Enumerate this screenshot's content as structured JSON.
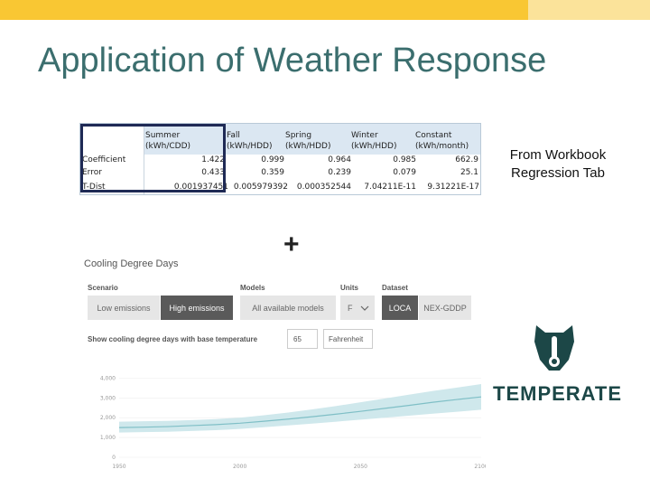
{
  "slide": {
    "title": "Application of Weather Response"
  },
  "regression_table": {
    "headers": [
      {
        "name": "Summer",
        "unit": "(kWh/CDD)"
      },
      {
        "name": "Fall",
        "unit": "(kWh/HDD)"
      },
      {
        "name": "Spring",
        "unit": "(kWh/HDD)"
      },
      {
        "name": "Winter",
        "unit": "(kWh/HDD)"
      },
      {
        "name": "Constant",
        "unit": "(kWh/month)"
      }
    ],
    "rows": [
      {
        "label": "Coefficient",
        "values": [
          "1.422",
          "0.999",
          "0.964",
          "0.985",
          "662.9"
        ]
      },
      {
        "label": "Error",
        "values": [
          "0.433",
          "0.359",
          "0.239",
          "0.079",
          "25.1"
        ]
      },
      {
        "label": "T-Dist",
        "values": [
          "0.001937451",
          "0.005979392",
          "0.000352544",
          "7.04211E-11",
          "9.31221E-17"
        ]
      }
    ]
  },
  "plus_sign": "+",
  "side_note": {
    "line1": "From Workbook",
    "line2": "Regression Tab"
  },
  "tool": {
    "title": "Cooling Degree Days",
    "scenario": {
      "label": "Scenario",
      "options": [
        "Low emissions",
        "High emissions"
      ],
      "selected": "High emissions"
    },
    "models": {
      "label": "Models",
      "value": "All available models"
    },
    "units": {
      "label": "Units",
      "value": "F"
    },
    "dataset": {
      "label": "Dataset",
      "options": [
        "LOCA",
        "NEX-GDDP"
      ],
      "selected": "LOCA"
    },
    "base_temp": {
      "label": "Show cooling degree days with base temperature",
      "value": "65",
      "unit": "Fahrenheit"
    }
  },
  "chart_data": {
    "type": "area",
    "x_ticks": [
      "1950",
      "2000",
      "2050",
      "2100"
    ],
    "y_ticks": [
      "0",
      "1,000",
      "2,000",
      "3,000",
      "4,000"
    ],
    "x_range": [
      1950,
      2100
    ],
    "y_range": [
      0,
      4200
    ],
    "median": [
      [
        1950,
        1500
      ],
      [
        1960,
        1520
      ],
      [
        1970,
        1550
      ],
      [
        1980,
        1600
      ],
      [
        1990,
        1650
      ],
      [
        2000,
        1720
      ],
      [
        2010,
        1820
      ],
      [
        2020,
        1930
      ],
      [
        2030,
        2050
      ],
      [
        2040,
        2180
      ],
      [
        2050,
        2320
      ],
      [
        2060,
        2470
      ],
      [
        2070,
        2620
      ],
      [
        2080,
        2780
      ],
      [
        2090,
        2920
      ],
      [
        2100,
        3050
      ]
    ],
    "band_low": [
      [
        1950,
        1250
      ],
      [
        1960,
        1270
      ],
      [
        1970,
        1290
      ],
      [
        1980,
        1330
      ],
      [
        1990,
        1370
      ],
      [
        2000,
        1430
      ],
      [
        2010,
        1520
      ],
      [
        2020,
        1610
      ],
      [
        2030,
        1700
      ],
      [
        2040,
        1800
      ],
      [
        2050,
        1900
      ],
      [
        2060,
        2000
      ],
      [
        2070,
        2100
      ],
      [
        2080,
        2200
      ],
      [
        2090,
        2300
      ],
      [
        2100,
        2400
      ]
    ],
    "band_high": [
      [
        1950,
        1800
      ],
      [
        1960,
        1820
      ],
      [
        1970,
        1840
      ],
      [
        1980,
        1880
      ],
      [
        1990,
        1930
      ],
      [
        2000,
        2000
      ],
      [
        2010,
        2120
      ],
      [
        2020,
        2260
      ],
      [
        2030,
        2420
      ],
      [
        2040,
        2590
      ],
      [
        2050,
        2780
      ],
      [
        2060,
        2970
      ],
      [
        2070,
        3160
      ],
      [
        2080,
        3350
      ],
      [
        2090,
        3520
      ],
      [
        2100,
        3700
      ]
    ],
    "band_color": "#cfe8ec",
    "line_color": "#7fbfc6"
  },
  "logo": {
    "wordmark": "TEMPERATE",
    "icon": "bear-thermometer-icon",
    "color": "#1c4747"
  },
  "colors": {
    "topbar": "#f9c733",
    "topbar_side": "#fbe39a",
    "title": "#3b6e6e"
  }
}
